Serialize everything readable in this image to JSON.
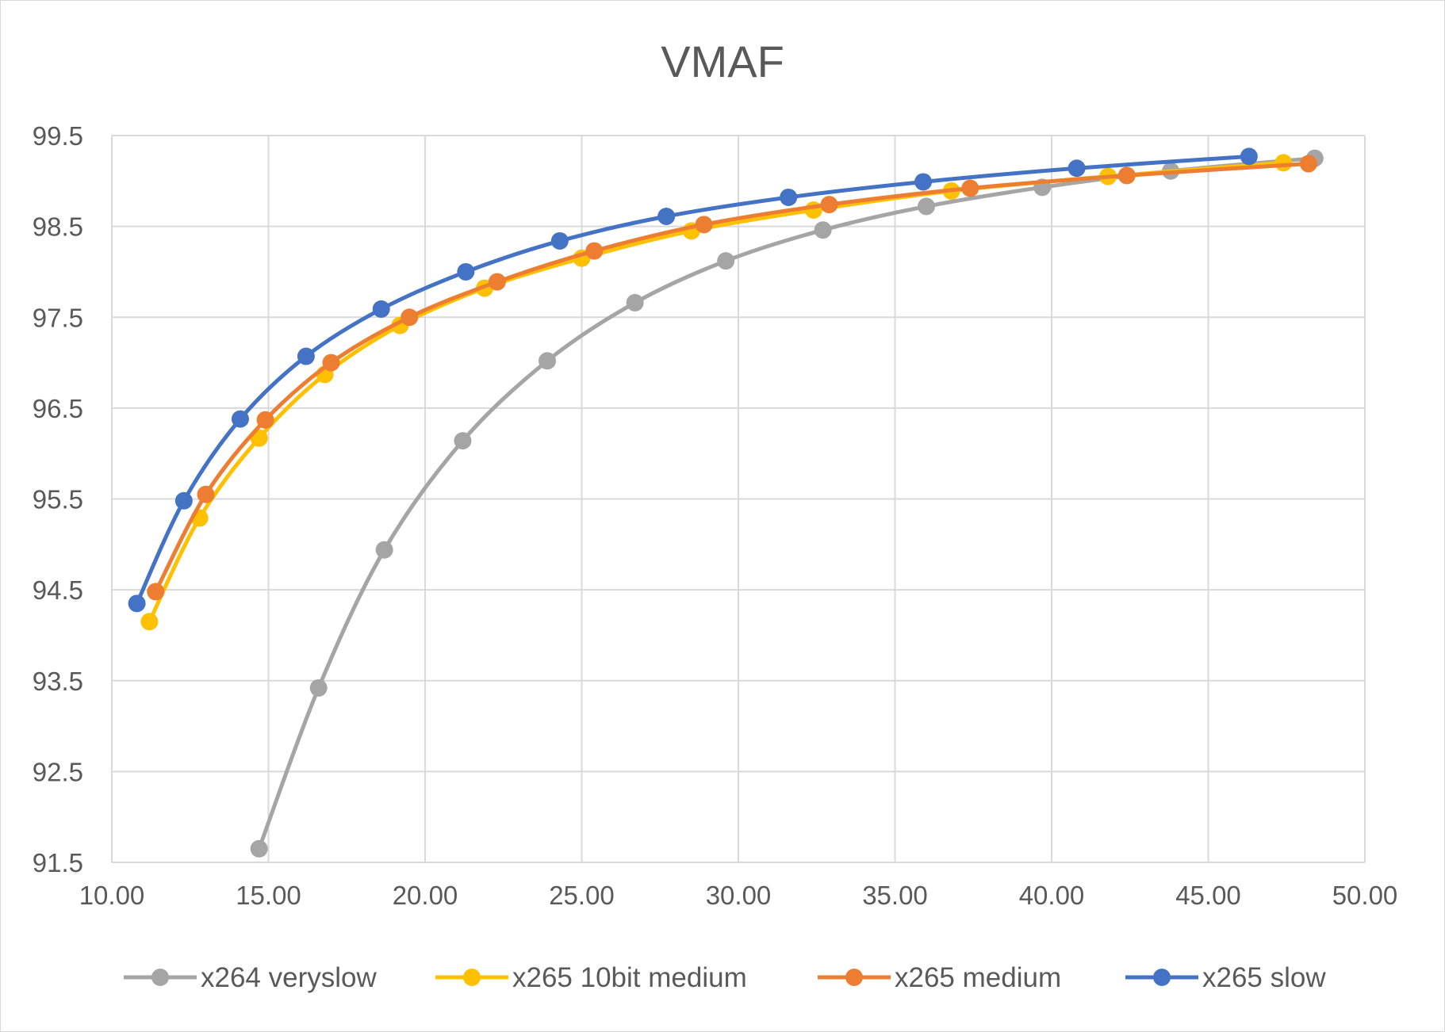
{
  "chart_data": {
    "type": "line",
    "title": "VMAF",
    "xlabel": "",
    "ylabel": "",
    "xlim": [
      10,
      50
    ],
    "ylim": [
      91.5,
      99.5
    ],
    "x_ticks": [
      "10.00",
      "15.00",
      "20.00",
      "25.00",
      "30.00",
      "35.00",
      "40.00",
      "45.00",
      "50.00"
    ],
    "y_ticks": [
      "91.5",
      "92.5",
      "93.5",
      "94.5",
      "95.5",
      "96.5",
      "97.5",
      "98.5",
      "99.5"
    ],
    "grid": true,
    "legend_position": "bottom",
    "series": [
      {
        "name": "x264 veryslow",
        "color": "#a5a5a5",
        "x": [
          14.7,
          16.6,
          18.7,
          21.2,
          23.9,
          26.7,
          29.6,
          32.7,
          36.0,
          39.7,
          43.8,
          48.4
        ],
        "y": [
          91.65,
          93.42,
          94.94,
          96.14,
          97.02,
          97.66,
          98.12,
          98.46,
          98.72,
          98.93,
          99.11,
          99.25
        ]
      },
      {
        "name": "x265 10bit medium",
        "color": "#ffc000",
        "x": [
          11.2,
          12.8,
          14.7,
          16.8,
          19.2,
          21.9,
          25.0,
          28.5,
          32.4,
          36.8,
          41.8,
          47.4
        ],
        "y": [
          94.15,
          95.29,
          96.17,
          96.87,
          97.41,
          97.82,
          98.15,
          98.45,
          98.68,
          98.89,
          99.05,
          99.2
        ]
      },
      {
        "name": "x265 medium",
        "color": "#ed7d31",
        "x": [
          11.4,
          13.0,
          14.9,
          17.0,
          19.5,
          22.3,
          25.4,
          28.9,
          32.9,
          37.4,
          42.4,
          48.2
        ],
        "y": [
          94.48,
          95.55,
          96.37,
          97.0,
          97.5,
          97.89,
          98.23,
          98.52,
          98.74,
          98.92,
          99.06,
          99.19
        ]
      },
      {
        "name": "x265 slow",
        "color": "#4472c4",
        "x": [
          10.8,
          12.3,
          14.1,
          16.2,
          18.6,
          21.3,
          24.3,
          27.7,
          31.6,
          35.9,
          40.8,
          46.3
        ],
        "y": [
          94.35,
          95.48,
          96.38,
          97.07,
          97.59,
          98.0,
          98.34,
          98.61,
          98.82,
          98.99,
          99.14,
          99.27
        ]
      }
    ]
  }
}
